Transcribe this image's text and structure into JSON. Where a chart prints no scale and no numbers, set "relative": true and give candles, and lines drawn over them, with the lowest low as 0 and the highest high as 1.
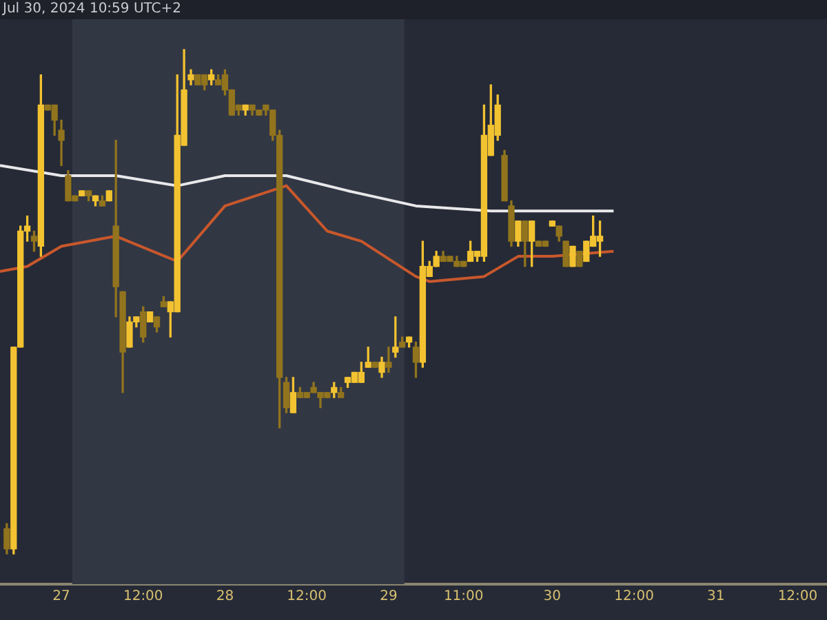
{
  "chart_data": {
    "type": "candlestick",
    "relative": true,
    "colors": [
      "#91741d",
      "#f2c230",
      "#f2c230",
      "#f2c230",
      "#91741d",
      "#f2c230",
      "#91741d",
      "#91741d",
      "#91741d",
      "#91741d",
      "#91741d",
      "#f2c230",
      "#91741d",
      "#f2c230",
      "#91741d",
      "#f2c230",
      "#91741d",
      "#91741d",
      "#f2c230",
      "#f2c230",
      "#91741d",
      "#f2c230",
      "#91741d",
      "#91741d",
      "#f2c230",
      "#f2c230",
      "#f2c230",
      "#f2c230",
      "#91741d",
      "#91741d",
      "#f2c230",
      "#91741d",
      "#91741d",
      "#91741d",
      "#91741d",
      "#f2c230",
      "#91741d",
      "#91741d",
      "#91741d",
      "#91741d",
      "#91741d",
      "#91741d",
      "#f2c230",
      "#91741d",
      "#91741d",
      "#91741d",
      "#91741d",
      "#91741d",
      "#f2c230",
      "#91741d",
      "#f2c230",
      "#f2c230",
      "#f2c230",
      "#f2c230",
      "#91741d",
      "#f2c230",
      "#91741d",
      "#f2c230",
      "#91741d",
      "#f2c230",
      "#91741d",
      "#f2c230",
      "#f2c230",
      "#f2c230",
      "#91741d",
      "#91741d",
      "#91741d",
      "#91741d",
      "#f2c230",
      "#f2c230",
      "#f2c230",
      "#f2c230",
      "#f2c230",
      "#91741d",
      "#91741d",
      "#f2c230",
      "#91741d",
      "#f2c230",
      "#91741d",
      "#91741d",
      "#f2c230",
      "#91741d",
      "#91741d",
      "#f2c230",
      "#91741d",
      "#f2c230",
      "#f2c230",
      "#f2c230"
    ],
    "annotations": [
      "Jul 30, 2024 10:59 UTC+2"
    ],
    "xlim": [
      "2024-07-26T15:00",
      "2024-07-31T16:18"
    ],
    "xticks": [
      {
        "value": "2024-07-27T00:00",
        "label": "27"
      },
      {
        "value": "2024-07-27T12:00",
        "label": "12:00"
      },
      {
        "value": "2024-07-28T00:00",
        "label": "28"
      },
      {
        "value": "2024-07-28T12:00",
        "label": "12:00"
      },
      {
        "value": "2024-07-29T00:00",
        "label": "29"
      },
      {
        "value": "2024-07-29T11:00",
        "label": "11:00"
      },
      {
        "value": "2024-07-30T00:00",
        "label": "30"
      },
      {
        "value": "2024-07-30T12:00",
        "label": "12:00"
      },
      {
        "value": "2024-07-31T00:00",
        "label": "31"
      },
      {
        "value": "2024-07-31T12:00",
        "label": "12:00"
      }
    ],
    "bands": [
      {
        "axis": "x",
        "from": "2024-07-27T01:36",
        "to": "2024-07-29T02:18",
        "color": "#323744"
      }
    ],
    "x": [
      "2024-07-26T16:00",
      "2024-07-26T17:00",
      "2024-07-26T18:00",
      "2024-07-26T19:00",
      "2024-07-26T20:00",
      "2024-07-26T21:00",
      "2024-07-26T22:00",
      "2024-07-26T23:00",
      "2024-07-27T00:00",
      "2024-07-27T01:00",
      "2024-07-27T02:00",
      "2024-07-27T03:00",
      "2024-07-27T04:00",
      "2024-07-27T05:00",
      "2024-07-27T06:00",
      "2024-07-27T07:00",
      "2024-07-27T08:00",
      "2024-07-27T09:00",
      "2024-07-27T10:00",
      "2024-07-27T11:00",
      "2024-07-27T12:00",
      "2024-07-27T13:00",
      "2024-07-27T14:00",
      "2024-07-27T15:00",
      "2024-07-27T16:00",
      "2024-07-27T17:00",
      "2024-07-27T18:00",
      "2024-07-27T19:00",
      "2024-07-27T20:00",
      "2024-07-27T21:00",
      "2024-07-27T22:00",
      "2024-07-27T23:00",
      "2024-07-28T00:00",
      "2024-07-28T01:00",
      "2024-07-28T02:00",
      "2024-07-28T03:00",
      "2024-07-28T04:00",
      "2024-07-28T05:00",
      "2024-07-28T06:00",
      "2024-07-28T07:00",
      "2024-07-28T08:00",
      "2024-07-28T09:00",
      "2024-07-28T10:00",
      "2024-07-28T11:00",
      "2024-07-28T12:00",
      "2024-07-28T13:00",
      "2024-07-28T14:00",
      "2024-07-28T15:00",
      "2024-07-28T16:00",
      "2024-07-28T17:00",
      "2024-07-28T18:00",
      "2024-07-28T19:00",
      "2024-07-28T20:00",
      "2024-07-28T21:00",
      "2024-07-28T22:00",
      "2024-07-28T23:00",
      "2024-07-29T00:00",
      "2024-07-29T01:00",
      "2024-07-29T02:00",
      "2024-07-29T03:00",
      "2024-07-29T04:00",
      "2024-07-29T05:00",
      "2024-07-29T06:00",
      "2024-07-29T07:00",
      "2024-07-29T08:00",
      "2024-07-29T09:00",
      "2024-07-29T10:00",
      "2024-07-29T11:00",
      "2024-07-29T12:00",
      "2024-07-29T13:00",
      "2024-07-29T14:00",
      "2024-07-29T15:00",
      "2024-07-29T16:00",
      "2024-07-29T17:00",
      "2024-07-29T18:00",
      "2024-07-29T19:00",
      "2024-07-29T20:00",
      "2024-07-29T21:00",
      "2024-07-29T22:00",
      "2024-07-29T23:00",
      "2024-07-30T00:00",
      "2024-07-30T01:00",
      "2024-07-30T02:00",
      "2024-07-30T03:00",
      "2024-07-30T04:00",
      "2024-07-30T05:00",
      "2024-07-30T06:00",
      "2024-07-30T07:00"
    ],
    "ohlc": [
      [
        0.05,
        0.06,
        0,
        0.01
      ],
      [
        0.01,
        0.41,
        0,
        0.41
      ],
      [
        0.41,
        0.65,
        0.41,
        0.64
      ],
      [
        0.64,
        0.67,
        0.62,
        0.65
      ],
      [
        0.63,
        0.64,
        0.6,
        0.62
      ],
      [
        0.61,
        0.95,
        0.59,
        0.89
      ],
      [
        0.89,
        0.89,
        0.88,
        0.88
      ],
      [
        0.89,
        0.89,
        0.83,
        0.86
      ],
      [
        0.84,
        0.86,
        0.77,
        0.82
      ],
      [
        0.75,
        0.76,
        0.7,
        0.7
      ],
      [
        0.71,
        0.71,
        0.7,
        0.7
      ],
      [
        0.71,
        0.72,
        0.71,
        0.72
      ],
      [
        0.72,
        0.72,
        0.7,
        0.71
      ],
      [
        0.7,
        0.71,
        0.69,
        0.71
      ],
      [
        0.7,
        0.71,
        0.69,
        0.69
      ],
      [
        0.7,
        0.72,
        0.7,
        0.72
      ],
      [
        0.65,
        0.82,
        0.47,
        0.53
      ],
      [
        0.52,
        0.52,
        0.32,
        0.4
      ],
      [
        0.41,
        0.47,
        0.41,
        0.46
      ],
      [
        0.46,
        0.47,
        0.45,
        0.47
      ],
      [
        0.48,
        0.49,
        0.42,
        0.43
      ],
      [
        0.46,
        0.48,
        0.46,
        0.48
      ],
      [
        0.47,
        0.47,
        0.44,
        0.45
      ],
      [
        0.5,
        0.51,
        0.49,
        0.49
      ],
      [
        0.48,
        0.5,
        0.43,
        0.5
      ],
      [
        0.48,
        0.95,
        0.48,
        0.83
      ],
      [
        0.81,
        1.0,
        0.81,
        0.92
      ],
      [
        0.94,
        0.96,
        0.93,
        0.95
      ],
      [
        0.95,
        0.95,
        0.93,
        0.93
      ],
      [
        0.95,
        0.95,
        0.92,
        0.93
      ],
      [
        0.94,
        0.96,
        0.93,
        0.95
      ],
      [
        0.94,
        0.95,
        0.93,
        0.93
      ],
      [
        0.95,
        0.96,
        0.91,
        0.92
      ],
      [
        0.92,
        0.92,
        0.87,
        0.87
      ],
      [
        0.89,
        0.89,
        0.87,
        0.88
      ],
      [
        0.88,
        0.89,
        0.87,
        0.89
      ],
      [
        0.89,
        0.89,
        0.87,
        0.88
      ],
      [
        0.88,
        0.88,
        0.87,
        0.87
      ],
      [
        0.89,
        0.89,
        0.87,
        0.88
      ],
      [
        0.88,
        0.88,
        0.82,
        0.83
      ],
      [
        0.83,
        0.84,
        0.25,
        0.35
      ],
      [
        0.34,
        0.35,
        0.28,
        0.29
      ],
      [
        0.28,
        0.35,
        0.28,
        0.32
      ],
      [
        0.32,
        0.33,
        0.31,
        0.31
      ],
      [
        0.32,
        0.32,
        0.31,
        0.31
      ],
      [
        0.33,
        0.34,
        0.32,
        0.32
      ],
      [
        0.32,
        0.32,
        0.29,
        0.31
      ],
      [
        0.32,
        0.32,
        0.31,
        0.31
      ],
      [
        0.32,
        0.34,
        0.31,
        0.33
      ],
      [
        0.32,
        0.33,
        0.31,
        0.31
      ],
      [
        0.34,
        0.35,
        0.33,
        0.35
      ],
      [
        0.34,
        0.36,
        0.34,
        0.36
      ],
      [
        0.34,
        0.38,
        0.34,
        0.36
      ],
      [
        0.37,
        0.41,
        0.37,
        0.38
      ],
      [
        0.38,
        0.38,
        0.37,
        0.37
      ],
      [
        0.36,
        0.39,
        0.35,
        0.38
      ],
      [
        0.38,
        0.41,
        0.36,
        0.37
      ],
      [
        0.4,
        0.47,
        0.39,
        0.41
      ],
      [
        0.42,
        0.43,
        0.41,
        0.41
      ],
      [
        0.42,
        0.43,
        0.41,
        0.43
      ],
      [
        0.41,
        0.42,
        0.35,
        0.38
      ],
      [
        0.38,
        0.62,
        0.37,
        0.57
      ],
      [
        0.55,
        0.58,
        0.55,
        0.57
      ],
      [
        0.57,
        0.6,
        0.57,
        0.59
      ],
      [
        0.59,
        0.6,
        0.58,
        0.58
      ],
      [
        0.59,
        0.59,
        0.58,
        0.58
      ],
      [
        0.58,
        0.59,
        0.57,
        0.57
      ],
      [
        0.58,
        0.58,
        0.57,
        0.57
      ],
      [
        0.58,
        0.62,
        0.58,
        0.6
      ],
      [
        0.59,
        0.6,
        0.58,
        0.6
      ],
      [
        0.59,
        0.89,
        0.58,
        0.83
      ],
      [
        0.79,
        0.93,
        0.79,
        0.85
      ],
      [
        0.83,
        0.91,
        0.82,
        0.89
      ],
      [
        0.79,
        0.8,
        0.7,
        0.7
      ],
      [
        0.69,
        0.7,
        0.61,
        0.62
      ],
      [
        0.62,
        0.66,
        0.61,
        0.66
      ],
      [
        0.66,
        0.66,
        0.57,
        0.62
      ],
      [
        0.62,
        0.66,
        0.57,
        0.66
      ],
      [
        0.62,
        0.62,
        0.61,
        0.61
      ],
      [
        0.62,
        0.62,
        0.61,
        0.61
      ],
      [
        0.65,
        0.66,
        0.65,
        0.66
      ],
      [
        0.65,
        0.65,
        0.62,
        0.63
      ],
      [
        0.62,
        0.62,
        0.57,
        0.57
      ],
      [
        0.57,
        0.61,
        0.57,
        0.61
      ],
      [
        0.6,
        0.6,
        0.57,
        0.57
      ],
      [
        0.58,
        0.62,
        0.58,
        0.62
      ],
      [
        0.61,
        0.67,
        0.61,
        0.63
      ],
      [
        0.62,
        0.66,
        0.59,
        0.63
      ]
    ],
    "series": [
      {
        "type": "line",
        "color": "#e8e8ea",
        "x": [
          "2024-07-26T15:00",
          "2024-07-27T00:00",
          "2024-07-27T08:00",
          "2024-07-27T17:00",
          "2024-07-28T00:00",
          "2024-07-28T09:00",
          "2024-07-28T18:00",
          "2024-07-29T04:00",
          "2024-07-29T15:00",
          "2024-07-30T00:00",
          "2024-07-30T09:00"
        ],
        "values": [
          0.77,
          0.75,
          0.75,
          0.73,
          0.75,
          0.75,
          0.72,
          0.69,
          0.68,
          0.68,
          0.68
        ]
      },
      {
        "type": "line",
        "color": "#c8582c",
        "x": [
          "2024-07-26T15:00",
          "2024-07-26T19:00",
          "2024-07-27T00:00",
          "2024-07-27T08:00",
          "2024-07-27T17:00",
          "2024-07-28T00:00",
          "2024-07-28T09:00",
          "2024-07-28T15:00",
          "2024-07-28T20:00",
          "2024-07-29T04:00",
          "2024-07-29T06:00",
          "2024-07-29T14:00",
          "2024-07-29T19:00",
          "2024-07-30T00:00",
          "2024-07-30T09:00"
        ],
        "values": [
          0.56,
          0.57,
          0.61,
          0.63,
          0.58,
          0.69,
          0.73,
          0.64,
          0.62,
          0.55,
          0.54,
          0.55,
          0.59,
          0.59,
          0.6
        ]
      }
    ],
    "marker": "none"
  }
}
